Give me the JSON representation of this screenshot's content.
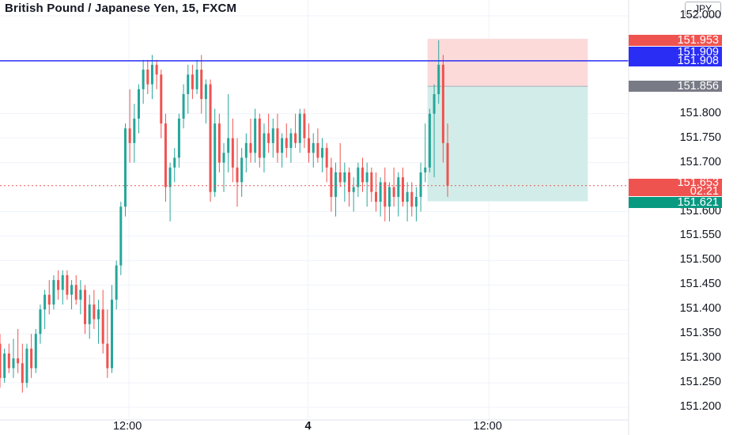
{
  "title": "British Pound / Japanese Yen, 15, FXCM",
  "currency": "JPY",
  "colors": {
    "up": "#26a69a",
    "down": "#ef5350",
    "blue_line": "#2a2ef5",
    "target_zone": "#d2ede9",
    "stop_zone": "#fcdada",
    "last_price": "#ef5350",
    "entry": "#787b86",
    "target_price": "#089981"
  },
  "chart_data": {
    "type": "candlestick",
    "title": "British Pound / Japanese Yen, 15, FXCM",
    "ylim": [
      151.17,
      152.03
    ],
    "yticks": [
      "152.000",
      "151.800",
      "151.750",
      "151.700",
      "151.600",
      "151.550",
      "151.500",
      "151.450",
      "151.400",
      "151.350",
      "151.300",
      "151.250",
      "151.200"
    ],
    "xticks": [
      "12:00",
      "4",
      "12:00"
    ],
    "grid": true,
    "horizontal_line": 151.908,
    "position": {
      "stop": 151.953,
      "entry": 151.856,
      "target": 151.621
    },
    "labels": {
      "stop": "151.953",
      "blue1": "151.909",
      "blue2": "151.908",
      "entry": "151.856",
      "last": "151.653",
      "countdown": "02:21",
      "target": "151.621"
    },
    "candles_ohlc": [
      [
        151.33,
        151.35,
        151.24,
        151.26
      ],
      [
        151.26,
        151.32,
        151.25,
        151.31
      ],
      [
        151.31,
        151.33,
        151.27,
        151.28
      ],
      [
        151.28,
        151.34,
        151.26,
        151.3
      ],
      [
        151.3,
        151.36,
        151.27,
        151.29
      ],
      [
        151.29,
        151.33,
        151.23,
        151.25
      ],
      [
        151.25,
        151.33,
        151.24,
        151.32
      ],
      [
        151.32,
        151.35,
        151.26,
        151.28
      ],
      [
        151.28,
        151.36,
        151.27,
        151.35
      ],
      [
        151.35,
        151.41,
        151.33,
        151.4
      ],
      [
        151.4,
        151.44,
        151.36,
        151.43
      ],
      [
        151.43,
        151.46,
        151.39,
        151.41
      ],
      [
        151.41,
        151.47,
        151.4,
        151.46
      ],
      [
        151.46,
        151.48,
        151.42,
        151.44
      ],
      [
        151.44,
        151.48,
        151.41,
        151.47
      ],
      [
        151.47,
        151.48,
        151.42,
        151.43
      ],
      [
        151.43,
        151.46,
        151.4,
        151.45
      ],
      [
        151.45,
        151.47,
        151.41,
        151.42
      ],
      [
        151.42,
        151.46,
        151.39,
        151.44
      ],
      [
        151.44,
        151.45,
        151.35,
        151.37
      ],
      [
        151.37,
        151.43,
        151.34,
        151.41
      ],
      [
        151.41,
        151.44,
        151.36,
        151.38
      ],
      [
        151.38,
        151.42,
        151.33,
        151.4
      ],
      [
        151.4,
        151.44,
        151.31,
        151.33
      ],
      [
        151.33,
        151.4,
        151.26,
        151.28
      ],
      [
        151.28,
        151.45,
        151.27,
        151.42
      ],
      [
        151.42,
        151.5,
        151.4,
        151.49
      ],
      [
        151.49,
        151.62,
        151.47,
        151.61
      ],
      [
        151.61,
        151.78,
        151.59,
        151.77
      ],
      [
        151.77,
        151.85,
        151.7,
        151.74
      ],
      [
        151.74,
        151.82,
        151.7,
        151.79
      ],
      [
        151.79,
        151.86,
        151.76,
        151.85
      ],
      [
        151.85,
        151.91,
        151.82,
        151.89
      ],
      [
        151.89,
        151.91,
        151.84,
        151.86
      ],
      [
        151.86,
        151.92,
        151.83,
        151.9
      ],
      [
        151.9,
        151.91,
        151.85,
        151.88
      ],
      [
        151.88,
        151.89,
        151.75,
        151.78
      ],
      [
        151.78,
        151.8,
        151.62,
        151.65
      ],
      [
        151.65,
        151.7,
        151.58,
        151.69
      ],
      [
        151.69,
        151.73,
        151.66,
        151.71
      ],
      [
        151.71,
        151.8,
        151.69,
        151.79
      ],
      [
        151.79,
        151.86,
        151.77,
        151.84
      ],
      [
        151.84,
        151.9,
        151.8,
        151.88
      ],
      [
        151.88,
        151.9,
        151.83,
        151.85
      ],
      [
        151.85,
        151.91,
        151.84,
        151.89
      ],
      [
        151.89,
        151.92,
        151.8,
        151.83
      ],
      [
        151.83,
        151.87,
        151.78,
        151.86
      ],
      [
        151.86,
        151.87,
        151.62,
        151.64
      ],
      [
        151.64,
        151.81,
        151.63,
        151.78
      ],
      [
        151.78,
        151.8,
        151.68,
        151.7
      ],
      [
        151.7,
        151.74,
        151.64,
        151.72
      ],
      [
        151.72,
        151.84,
        151.68,
        151.75
      ],
      [
        151.75,
        151.79,
        151.66,
        151.69
      ],
      [
        151.69,
        151.75,
        151.61,
        151.66
      ],
      [
        151.66,
        151.73,
        151.63,
        151.71
      ],
      [
        151.71,
        151.76,
        151.68,
        151.74
      ],
      [
        151.74,
        151.79,
        151.7,
        151.72
      ],
      [
        151.72,
        151.81,
        151.7,
        151.79
      ],
      [
        151.79,
        151.8,
        151.69,
        151.71
      ],
      [
        151.71,
        151.78,
        151.68,
        151.76
      ],
      [
        151.76,
        151.8,
        151.72,
        151.74
      ],
      [
        151.74,
        151.79,
        151.71,
        151.77
      ],
      [
        151.77,
        151.8,
        151.7,
        151.72
      ],
      [
        151.72,
        151.76,
        151.69,
        151.75
      ],
      [
        151.75,
        151.78,
        151.71,
        151.73
      ],
      [
        151.73,
        151.77,
        151.7,
        151.76
      ],
      [
        151.76,
        151.8,
        151.73,
        151.74
      ],
      [
        151.74,
        151.81,
        151.72,
        151.8
      ],
      [
        151.8,
        151.81,
        151.73,
        151.75
      ],
      [
        151.75,
        151.78,
        151.7,
        151.72
      ],
      [
        151.72,
        151.76,
        151.69,
        151.74
      ],
      [
        151.74,
        151.77,
        151.7,
        151.71
      ],
      [
        151.71,
        151.75,
        151.68,
        151.73
      ],
      [
        151.73,
        151.74,
        151.66,
        151.69
      ],
      [
        151.69,
        151.71,
        151.6,
        151.63
      ],
      [
        151.63,
        151.7,
        151.59,
        151.68
      ],
      [
        151.68,
        151.74,
        151.65,
        151.66
      ],
      [
        151.66,
        151.7,
        151.62,
        151.68
      ],
      [
        151.68,
        151.69,
        151.61,
        151.64
      ],
      [
        151.64,
        151.67,
        151.6,
        151.65
      ],
      [
        151.65,
        151.7,
        151.63,
        151.69
      ],
      [
        151.69,
        151.71,
        151.64,
        151.66
      ],
      [
        151.66,
        151.7,
        151.61,
        151.68
      ],
      [
        151.68,
        151.69,
        151.62,
        151.64
      ],
      [
        151.64,
        151.68,
        151.6,
        151.62
      ],
      [
        151.62,
        151.67,
        151.59,
        151.66
      ],
      [
        151.66,
        151.69,
        151.58,
        151.61
      ],
      [
        151.61,
        151.66,
        151.58,
        151.65
      ],
      [
        151.65,
        151.69,
        151.61,
        151.63
      ],
      [
        151.63,
        151.68,
        151.59,
        151.67
      ],
      [
        151.67,
        151.69,
        151.61,
        151.62
      ],
      [
        151.62,
        151.66,
        151.58,
        151.64
      ],
      [
        151.64,
        151.66,
        151.59,
        151.61
      ],
      [
        151.61,
        151.65,
        151.58,
        151.63
      ],
      [
        151.63,
        151.7,
        151.6,
        151.68
      ],
      [
        151.68,
        151.78,
        151.66,
        151.69
      ],
      [
        151.69,
        151.81,
        151.68,
        151.8
      ],
      [
        151.8,
        151.86,
        151.67,
        151.84
      ],
      [
        151.84,
        151.95,
        151.82,
        151.9
      ],
      [
        151.9,
        151.92,
        151.7,
        151.74
      ],
      [
        151.74,
        151.78,
        151.63,
        151.653
      ]
    ]
  }
}
